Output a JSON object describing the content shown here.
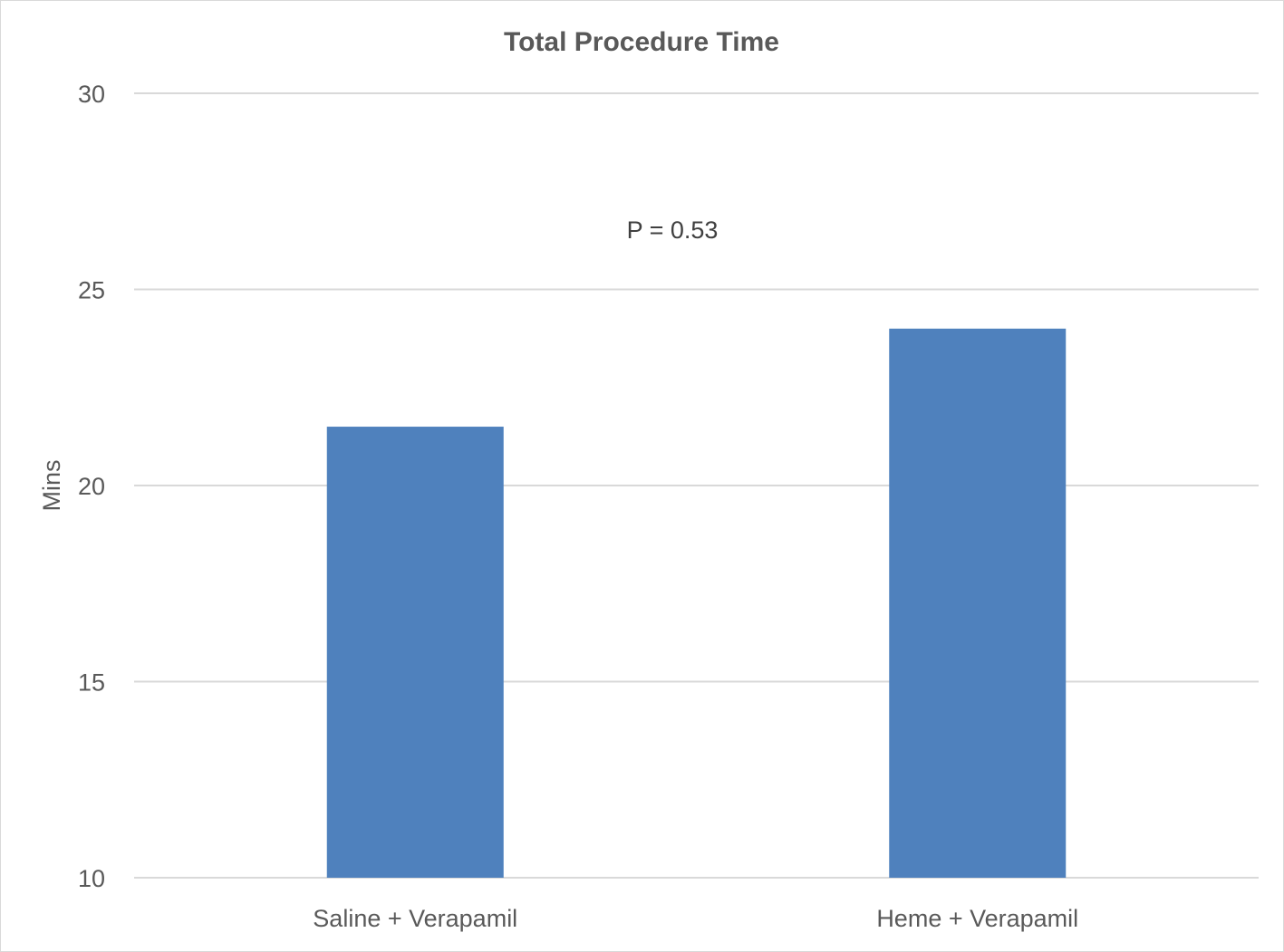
{
  "chart_data": {
    "type": "bar",
    "title": "Total Procedure Time",
    "xlabel": "",
    "ylabel": "Mins",
    "categories": [
      "Saline + Verapamil",
      "Heme + Verapamil"
    ],
    "values": [
      21.5,
      24.0
    ],
    "ylim": [
      10,
      30
    ],
    "yticks": [
      10,
      15,
      20,
      25,
      30
    ],
    "grid": true,
    "legend": "none",
    "bar_color": "#4f81bd",
    "annotations": [
      {
        "text": "P = 0.53"
      }
    ]
  }
}
